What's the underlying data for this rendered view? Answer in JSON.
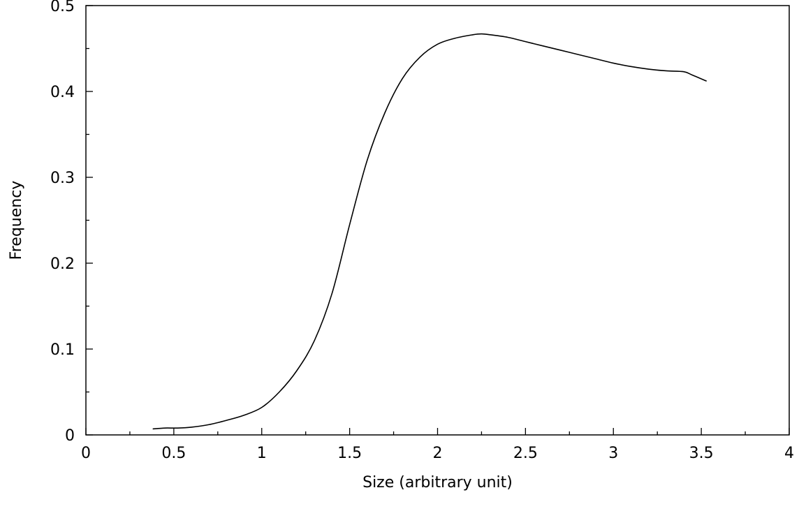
{
  "chart_data": {
    "type": "line",
    "title": "",
    "xlabel": "Size (arbitrary unit)",
    "ylabel": "Frequency",
    "xlim": [
      0,
      4
    ],
    "ylim": [
      0,
      0.5
    ],
    "x_ticks": [
      {
        "value": 0,
        "label": "0"
      },
      {
        "value": 0.5,
        "label": "0.5"
      },
      {
        "value": 1,
        "label": "1"
      },
      {
        "value": 1.5,
        "label": "1.5"
      },
      {
        "value": 2,
        "label": "2"
      },
      {
        "value": 2.5,
        "label": "2.5"
      },
      {
        "value": 3,
        "label": "3"
      },
      {
        "value": 3.5,
        "label": "3.5"
      },
      {
        "value": 4,
        "label": "4"
      }
    ],
    "y_ticks": [
      {
        "value": 0,
        "label": "0"
      },
      {
        "value": 0.1,
        "label": "0.1"
      },
      {
        "value": 0.2,
        "label": "0.2"
      },
      {
        "value": 0.3,
        "label": "0.3"
      },
      {
        "value": 0.4,
        "label": "0.4"
      },
      {
        "value": 0.5,
        "label": "0.5"
      }
    ],
    "minor_ticks": true,
    "grid": false,
    "series": [
      {
        "x": [
          0.38,
          0.45,
          0.52,
          0.6,
          0.7,
          0.8,
          0.9,
          1.0,
          1.1,
          1.2,
          1.3,
          1.4,
          1.5,
          1.6,
          1.7,
          1.8,
          1.9,
          2.0,
          2.1,
          2.2,
          2.25,
          2.3,
          2.4,
          2.5,
          2.6,
          2.7,
          2.8,
          2.9,
          3.0,
          3.1,
          3.2,
          3.3,
          3.4,
          3.45,
          3.53
        ],
        "y": [
          0.007,
          0.008,
          0.008,
          0.009,
          0.012,
          0.017,
          0.023,
          0.032,
          0.05,
          0.075,
          0.11,
          0.165,
          0.245,
          0.32,
          0.375,
          0.415,
          0.44,
          0.455,
          0.462,
          0.466,
          0.467,
          0.466,
          0.463,
          0.458,
          0.453,
          0.448,
          0.443,
          0.438,
          0.433,
          0.429,
          0.426,
          0.424,
          0.423,
          0.419,
          0.412
        ],
        "color": "#000000"
      }
    ]
  }
}
